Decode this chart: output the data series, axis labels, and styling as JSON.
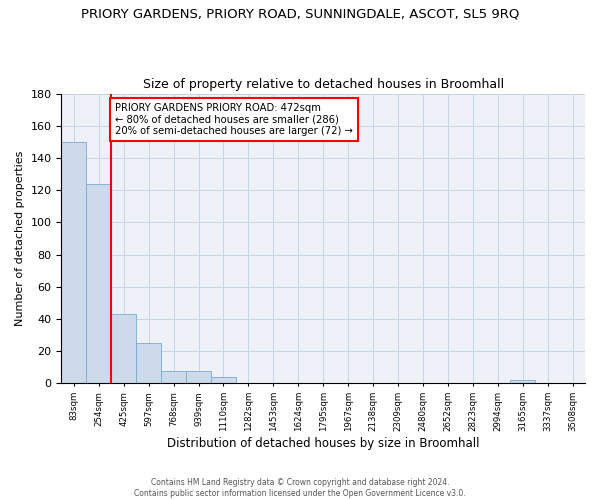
{
  "title": "PRIORY GARDENS, PRIORY ROAD, SUNNINGDALE, ASCOT, SL5 9RQ",
  "subtitle": "Size of property relative to detached houses in Broomhall",
  "xlabel": "Distribution of detached houses by size in Broomhall",
  "ylabel": "Number of detached properties",
  "bar_color": "#ccdaec",
  "bar_edge_color": "#7aaad0",
  "bin_labels": [
    "83sqm",
    "254sqm",
    "425sqm",
    "597sqm",
    "768sqm",
    "939sqm",
    "1110sqm",
    "1282sqm",
    "1453sqm",
    "1624sqm",
    "1795sqm",
    "1967sqm",
    "2138sqm",
    "2309sqm",
    "2480sqm",
    "2652sqm",
    "2823sqm",
    "2994sqm",
    "3165sqm",
    "3337sqm",
    "3508sqm"
  ],
  "bar_values": [
    150,
    124,
    43,
    25,
    8,
    8,
    4,
    0,
    0,
    0,
    0,
    0,
    0,
    0,
    0,
    0,
    0,
    0,
    2,
    0,
    0
  ],
  "ylim": [
    0,
    180
  ],
  "yticks": [
    0,
    20,
    40,
    60,
    80,
    100,
    120,
    140,
    160,
    180
  ],
  "annotation_text": "PRIORY GARDENS PRIORY ROAD: 472sqm\n← 80% of detached houses are smaller (286)\n20% of semi-detached houses are larger (72) →",
  "footer_line1": "Contains HM Land Registry data © Crown copyright and database right 2024.",
  "footer_line2": "Contains public sector information licensed under the Open Government Licence v3.0.",
  "background_color": "#eef2f8",
  "grid_color": "#c8d4e4",
  "red_line_bin_idx": 1.5
}
